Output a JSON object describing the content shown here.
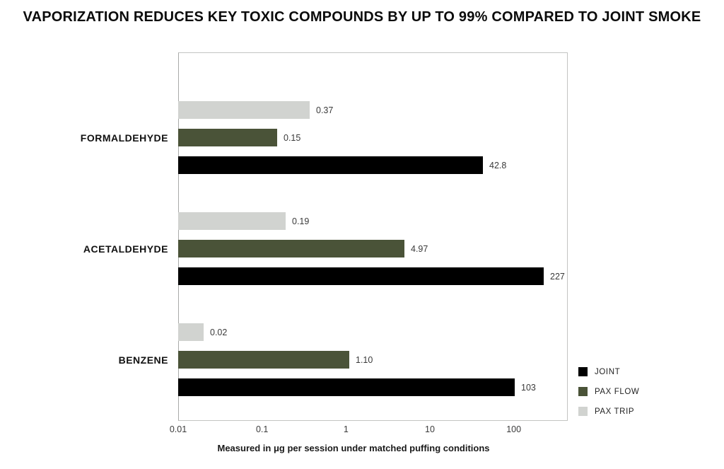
{
  "title": "VAPORIZATION REDUCES KEY TOXIC COMPOUNDS BY UP TO 99% COMPARED TO JOINT SMOKE",
  "chart_data": {
    "type": "bar",
    "orientation": "horizontal",
    "x_scale": "log",
    "x_range": [
      0.01,
      440
    ],
    "x_ticks": [
      {
        "value": 0.01,
        "label": "0.01"
      },
      {
        "value": 0.1,
        "label": "0.1"
      },
      {
        "value": 1,
        "label": "1"
      },
      {
        "value": 10,
        "label": "10"
      },
      {
        "value": 100,
        "label": "100"
      }
    ],
    "xlabel": "Measured in μg per session under matched puffing conditions",
    "categories": [
      "FORMALDEHYDE",
      "ACETALDEHYDE",
      "BENZENE"
    ],
    "series": [
      {
        "name": "JOINT",
        "color": "#000000",
        "values": [
          42.8,
          227,
          103
        ],
        "labels": [
          "42.8",
          "227",
          "103"
        ]
      },
      {
        "name": "PAX FLOW",
        "color": "#4A5338",
        "values": [
          0.15,
          4.97,
          1.1
        ],
        "labels": [
          "0.15",
          "4.97",
          "1.10"
        ]
      },
      {
        "name": "PAX TRIP",
        "color": "#D1D3D0",
        "values": [
          0.37,
          0.19,
          0.02
        ],
        "labels": [
          "0.37",
          "0.19",
          "0.02"
        ]
      }
    ],
    "bar_order_top_to_bottom": [
      "PAX TRIP",
      "PAX FLOW",
      "JOINT"
    ],
    "legend": {
      "position": "right-bottom",
      "items": [
        {
          "label": "JOINT",
          "color": "#000000"
        },
        {
          "label": "PAX FLOW",
          "color": "#4A5338"
        },
        {
          "label": "PAX TRIP",
          "color": "#D1D3D0"
        }
      ]
    },
    "grid": false,
    "plot_background": "#ffffff",
    "plot_border_color": "#c3c4c2"
  }
}
